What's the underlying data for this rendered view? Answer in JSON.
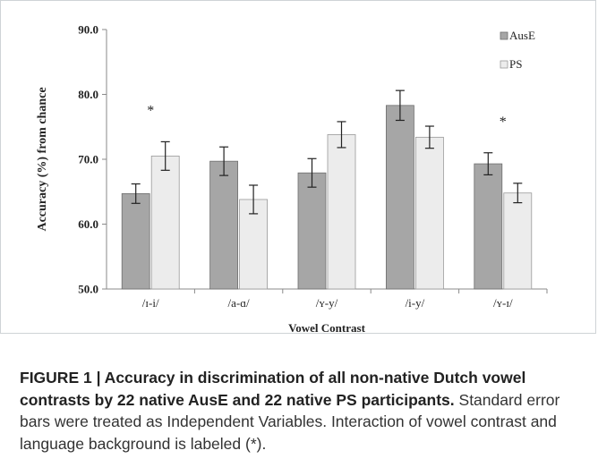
{
  "chart_data": {
    "type": "bar",
    "categories": [
      "/ɪ-i/",
      "/a-ɑ/",
      "/ʏ-y/",
      "/i-y/",
      "/ʏ-ɪ/"
    ],
    "series": [
      {
        "name": "AusE",
        "values": [
          64.7,
          69.7,
          67.9,
          78.3,
          69.3
        ],
        "errors": [
          1.5,
          2.2,
          2.2,
          2.3,
          1.7
        ],
        "color": "#a6a6a6"
      },
      {
        "name": "PS",
        "values": [
          70.5,
          63.8,
          73.8,
          73.4,
          64.8
        ],
        "errors": [
          2.2,
          2.2,
          2.0,
          1.7,
          1.5
        ],
        "color": "#ececec"
      }
    ],
    "annotations": [
      {
        "category": "/ɪ-i/",
        "text": "*"
      },
      {
        "category": "/ʏ-ɪ/",
        "text": "*"
      }
    ],
    "yticks": [
      "50.0",
      "60.0",
      "70.0",
      "80.0",
      "90.0"
    ],
    "xlabel": "Vowel Contrast",
    "ylabel": "Accuracy (%) from chance",
    "ylim": [
      50,
      90
    ],
    "grid": false,
    "legend": "top-right"
  },
  "caption": {
    "label": "FIGURE 1 | Accuracy in discrimination of all non-native Dutch vowel contrasts by 22 native AusE and 22 native PS participants.",
    "text": "Standard error bars were treated as Independent Variables. Interaction of vowel contrast and language background is labeled (*)."
  }
}
